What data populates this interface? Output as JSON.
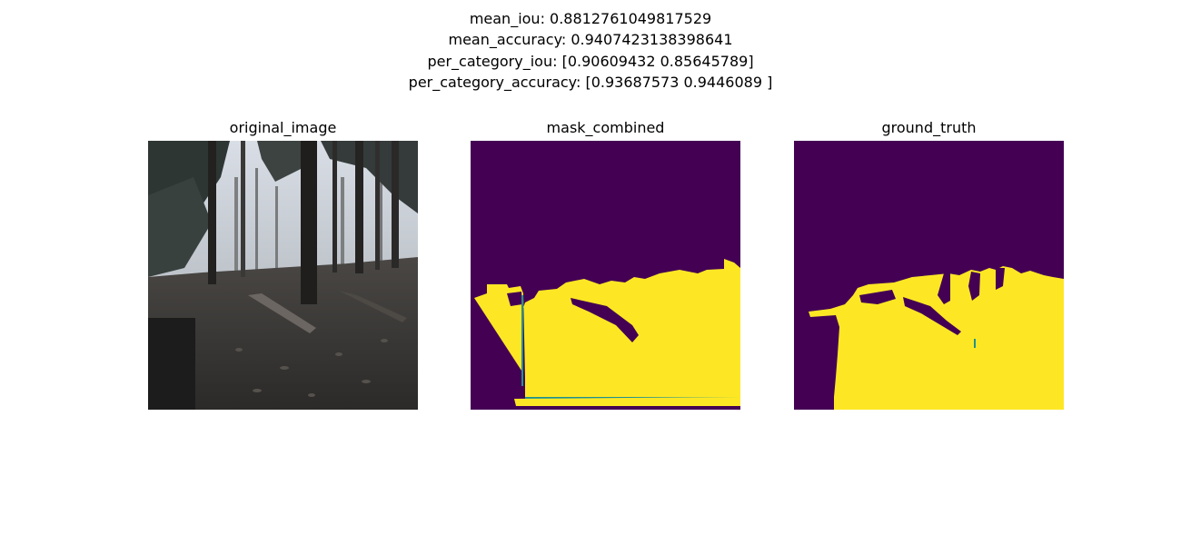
{
  "figure": {
    "metrics": {
      "mean_iou": "mean_iou: 0.8812761049817529",
      "mean_accuracy": "mean_accuracy: 0.9407423138398641",
      "per_category_iou": "per_category_iou: [0.90609432 0.85645789]",
      "per_category_accuracy": "per_category_accuracy: [0.93687573 0.9446089 ]"
    },
    "panels": [
      {
        "title": "original_image"
      },
      {
        "title": "mask_combined"
      },
      {
        "title": "ground_truth"
      }
    ],
    "colors": {
      "background_class": "#440154",
      "foreground_class": "#fde725",
      "edge_class": "#21918c"
    }
  }
}
